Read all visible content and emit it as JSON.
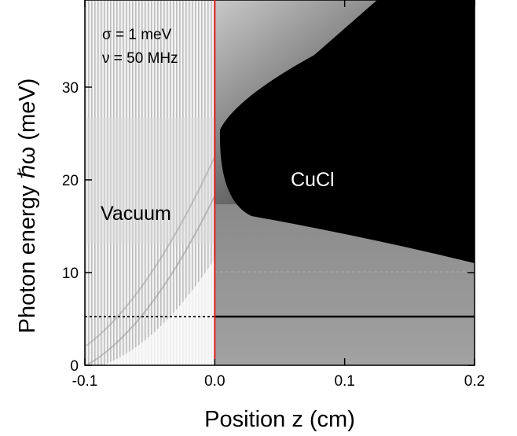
{
  "chart_data": {
    "type": "heatmap",
    "x_label": "Position z (cm)",
    "y_label": "Photon energy ℏω (meV)",
    "xlim": [
      -0.1,
      0.2
    ],
    "xticks": [
      -0.1,
      {
        "value": 0,
        "label": "0.0"
      },
      0.1,
      0.2
    ],
    "ylim": [
      0,
      39.4
    ],
    "yticks": [
      0,
      10,
      20,
      30
    ],
    "annotations": [
      "σ = 1 meV",
      "ν = 50 MHz",
      "Vacuum",
      "CuCl"
    ]
  }
}
